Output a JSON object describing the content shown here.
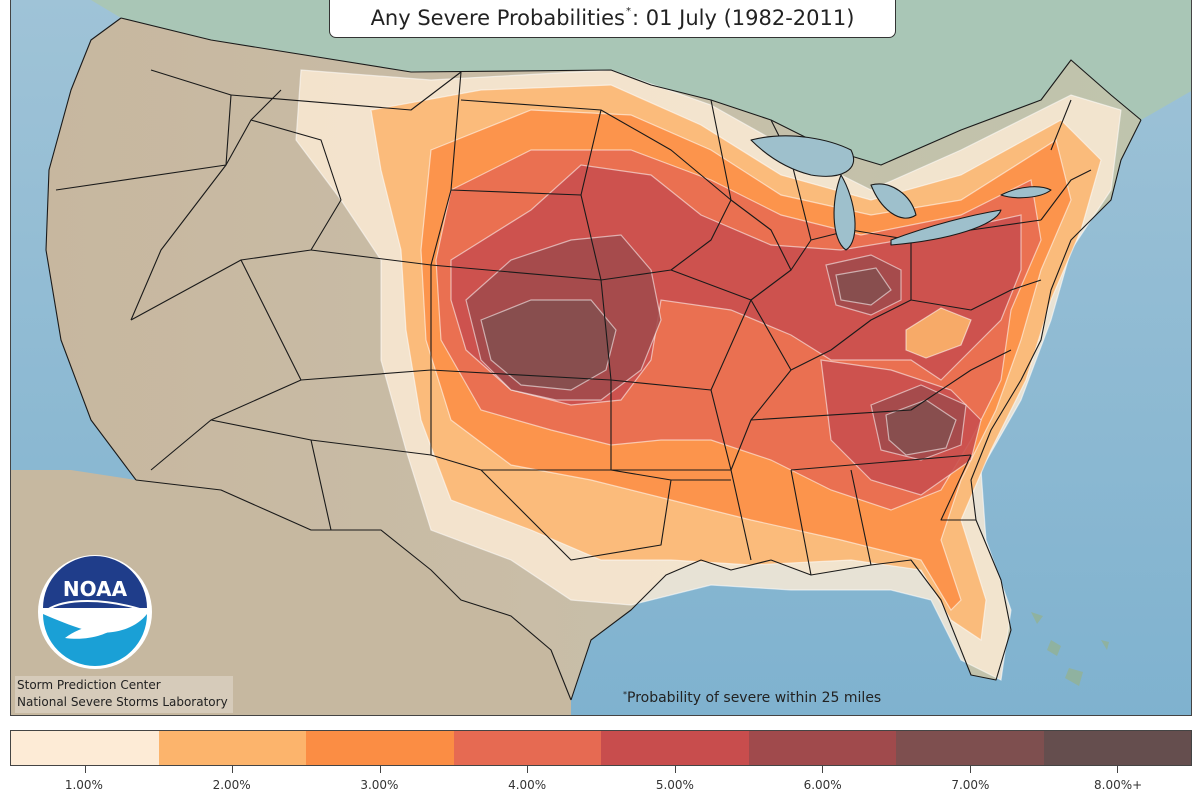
{
  "title": {
    "prefix": "Any Severe Probabilities",
    "marker": "*",
    "suffix": ": 01 July (1982-2011)"
  },
  "credits": {
    "line1": "Storm Prediction Center",
    "line2": "National Severe Storms Laboratory"
  },
  "footnote": {
    "marker": "*",
    "text": "Probability of severe within 25 miles"
  },
  "logo": {
    "text": "NOAA",
    "icon": "noaa-logo-icon"
  },
  "legend": [
    {
      "label": "1.00%",
      "color": "#fdebd6"
    },
    {
      "label": "2.00%",
      "color": "#fcb46c"
    },
    {
      "label": "3.00%",
      "color": "#fb8d44"
    },
    {
      "label": "4.00%",
      "color": "#e66a52"
    },
    {
      "label": "5.00%",
      "color": "#c84d4d"
    },
    {
      "label": "6.00%",
      "color": "#a04a4c"
    },
    {
      "label": "7.00%",
      "color": "#7e4f4f"
    },
    {
      "label": "8.00%+",
      "color": "#654e4e"
    }
  ],
  "colors": {
    "ocean": "#8cb7cc",
    "land": "#c9b9a0",
    "canada": "#a5c6b8",
    "border": "#1a1a1a"
  }
}
